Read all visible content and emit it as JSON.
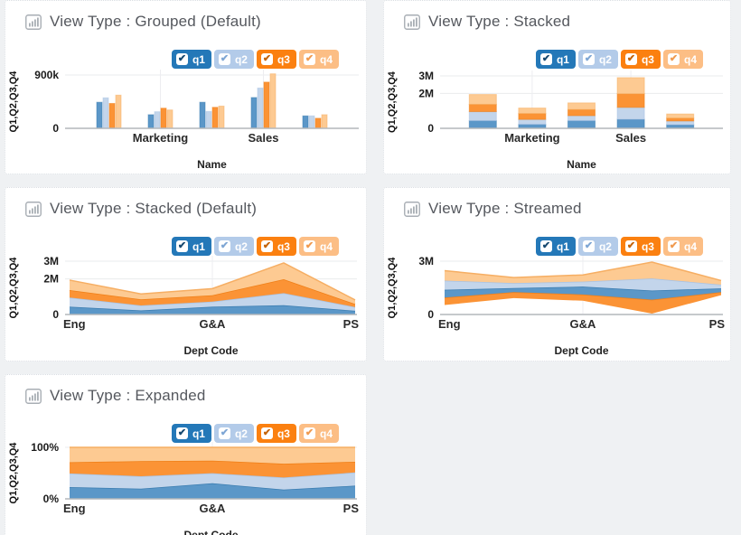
{
  "page": {
    "background": "#eff1f3",
    "panel_background": "#ffffff"
  },
  "legend": {
    "position": "top-right",
    "items": [
      {
        "id": "q1",
        "label": "q1",
        "checked": true,
        "bg": "#2478b8",
        "check": "#16486f"
      },
      {
        "id": "q2",
        "label": "q2",
        "checked": true,
        "bg": "#b3cbe9",
        "check": "#7ea6d4"
      },
      {
        "id": "q3",
        "label": "q3",
        "checked": true,
        "bg": "#fb8010",
        "check": "#c56307"
      },
      {
        "id": "q4",
        "label": "q4",
        "checked": true,
        "bg": "#fcbe85",
        "check": "#f09a4f"
      }
    ]
  },
  "series_style": {
    "q1": {
      "fill": "#5b97c8",
      "edge": "#3a7cb0"
    },
    "q2": {
      "fill": "#c3d5eb",
      "edge": "#a9c3e4"
    },
    "q3": {
      "fill": "#fb9335",
      "edge": "#ef7f17"
    },
    "q4": {
      "fill": "#fdca92",
      "edge": "#f6ae63"
    }
  },
  "panels": [
    {
      "title": "View Type : Grouped (Default)"
    },
    {
      "title": "View Type : Stacked"
    },
    {
      "title": "View Type : Stacked (Default)"
    },
    {
      "title": "View Type : Streamed"
    },
    {
      "title": "View Type : Expanded"
    }
  ],
  "chart_data": [
    {
      "type": "bar",
      "variant": "grouped",
      "title": "View Type : Grouped (Default)",
      "xlabel": "Name",
      "ylabel": "Q1,Q2,Q3,Q4",
      "unit": "thousands",
      "categories": [
        "",
        "Marketing",
        "",
        "Sales",
        ""
      ],
      "series": [
        {
          "name": "q1",
          "values": [
            440,
            230,
            440,
            520,
            210
          ]
        },
        {
          "name": "q2",
          "values": [
            515,
            280,
            285,
            680,
            210
          ]
        },
        {
          "name": "q3",
          "values": [
            420,
            340,
            355,
            780,
            170
          ]
        },
        {
          "name": "q4",
          "values": [
            560,
            310,
            375,
            920,
            230
          ]
        }
      ],
      "ylim": [
        0,
        950
      ],
      "yticks": [
        {
          "value": 0,
          "label": "0"
        },
        {
          "value": 900,
          "label": "900k"
        }
      ],
      "legend_position": "top-right",
      "grid": "subtle"
    },
    {
      "type": "bar",
      "variant": "stacked",
      "title": "View Type : Stacked",
      "xlabel": "Name",
      "ylabel": "Q1,Q2,Q3,Q4",
      "unit": "thousands",
      "categories": [
        "",
        "Marketing",
        "",
        "Sales",
        ""
      ],
      "series": [
        {
          "name": "q1",
          "values": [
            440,
            230,
            440,
            520,
            210
          ]
        },
        {
          "name": "q2",
          "values": [
            515,
            280,
            285,
            680,
            210
          ]
        },
        {
          "name": "q3",
          "values": [
            420,
            340,
            355,
            780,
            170
          ]
        },
        {
          "name": "q4",
          "values": [
            560,
            310,
            375,
            920,
            230
          ]
        }
      ],
      "ylim": [
        0,
        3100
      ],
      "yticks": [
        {
          "value": 0,
          "label": "0"
        },
        {
          "value": 2000,
          "label": "2M"
        },
        {
          "value": 3000,
          "label": "3M"
        }
      ],
      "legend_position": "top-right",
      "grid": "subtle"
    },
    {
      "type": "area",
      "variant": "stacked",
      "title": "View Type : Stacked (Default)",
      "xlabel": "Dept Code",
      "ylabel": "Q1,Q2,Q3,Q4",
      "unit": "thousands",
      "categories": [
        "Eng",
        "",
        "G&A",
        "",
        "PS"
      ],
      "series": [
        {
          "name": "q1",
          "values": [
            440,
            230,
            440,
            520,
            210
          ]
        },
        {
          "name": "q2",
          "values": [
            515,
            280,
            285,
            680,
            210
          ]
        },
        {
          "name": "q3",
          "values": [
            420,
            340,
            355,
            780,
            170
          ]
        },
        {
          "name": "q4",
          "values": [
            560,
            310,
            375,
            920,
            230
          ]
        }
      ],
      "ylim": [
        0,
        3100
      ],
      "yticks": [
        {
          "value": 0,
          "label": "0"
        },
        {
          "value": 2000,
          "label": "2M"
        },
        {
          "value": 3000,
          "label": "3M"
        }
      ],
      "legend_position": "top-right",
      "grid": "subtle"
    },
    {
      "type": "area",
      "variant": "streamed",
      "title": "View Type : Streamed",
      "xlabel": "Dept Code",
      "ylabel": "Q1,Q2,Q3,Q4",
      "unit": "thousands",
      "categories": [
        "Eng",
        "",
        "G&A",
        "",
        "PS"
      ],
      "series": [
        {
          "name": "q1",
          "values": [
            440,
            230,
            440,
            520,
            210
          ]
        },
        {
          "name": "q2",
          "values": [
            515,
            280,
            285,
            680,
            210
          ]
        },
        {
          "name": "q3",
          "values": [
            420,
            340,
            355,
            780,
            170
          ]
        },
        {
          "name": "q4",
          "values": [
            560,
            310,
            375,
            920,
            230
          ]
        }
      ],
      "stream_order_bottom_to_top": [
        "q3",
        "q1",
        "q2",
        "q4"
      ],
      "ylim": [
        0,
        3100
      ],
      "yticks": [
        {
          "value": 0,
          "label": "0"
        },
        {
          "value": 3000,
          "label": "3M"
        }
      ],
      "legend_position": "top-right",
      "grid": "subtle"
    },
    {
      "type": "area",
      "variant": "expanded",
      "title": "View Type : Expanded",
      "xlabel": "Dept Code",
      "ylabel": "Q1,Q2,Q3,Q4",
      "unit": "percent-of-total",
      "categories": [
        "Eng",
        "",
        "G&A",
        "",
        "PS"
      ],
      "series": [
        {
          "name": "q1",
          "values": [
            440,
            230,
            440,
            520,
            210
          ]
        },
        {
          "name": "q2",
          "values": [
            515,
            280,
            285,
            680,
            210
          ]
        },
        {
          "name": "q3",
          "values": [
            420,
            340,
            355,
            780,
            170
          ]
        },
        {
          "name": "q4",
          "values": [
            560,
            310,
            375,
            920,
            230
          ]
        }
      ],
      "ylim": [
        0,
        100
      ],
      "yticks": [
        {
          "value": 0,
          "label": "0%"
        },
        {
          "value": 100,
          "label": "100%"
        }
      ],
      "legend_position": "top-right",
      "grid": "subtle"
    }
  ]
}
